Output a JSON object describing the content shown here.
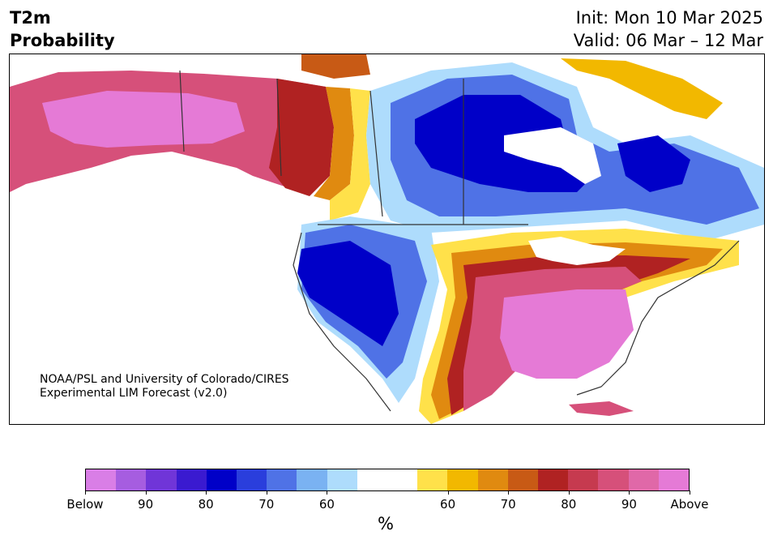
{
  "title": {
    "line1": "T2m",
    "line2": "Probability"
  },
  "init": {
    "line1": "Init: Mon 10 Mar 2025",
    "line2": "Valid: 06 Mar – 12 Mar"
  },
  "credit": {
    "line1": "NOAA/PSL and University of Colorado/CIRES",
    "line2": "Experimental LIM Forecast (v2.0)"
  },
  "colorbar": {
    "colors": [
      "#d97ee6",
      "#a65de0",
      "#7035d8",
      "#3a1ad0",
      "#0000c8",
      "#2a3edc",
      "#4f72e6",
      "#7ab2f2",
      "#aedcfc",
      "#ffffff",
      "#ffffff",
      "#ffe14a",
      "#f2b800",
      "#e08a10",
      "#c85a15",
      "#b02222",
      "#c63a4f",
      "#d6507a",
      "#e068a8",
      "#e57ad6"
    ],
    "ticks": [
      {
        "label": "Below",
        "frac": 0.0
      },
      {
        "label": "90",
        "frac": 0.1
      },
      {
        "label": "80",
        "frac": 0.2
      },
      {
        "label": "70",
        "frac": 0.3
      },
      {
        "label": "60",
        "frac": 0.4
      },
      {
        "label": "60",
        "frac": 0.6
      },
      {
        "label": "70",
        "frac": 0.7
      },
      {
        "label": "80",
        "frac": 0.8
      },
      {
        "label": "90",
        "frac": 0.9
      },
      {
        "label": "Above",
        "frac": 1.0
      }
    ],
    "unit": "%"
  },
  "map": {
    "region": "North America",
    "colors": {
      "cold_strong": "#0000c8",
      "cold_mid": "#4f72e6",
      "cold_weak": "#aedcfc",
      "warm_weak": "#ffe14a",
      "warm_mid": "#e08a10",
      "warm_strong": "#b02222",
      "above": "#e57ad6",
      "above_mid": "#d6507a",
      "lakes": "#ffffff"
    }
  }
}
